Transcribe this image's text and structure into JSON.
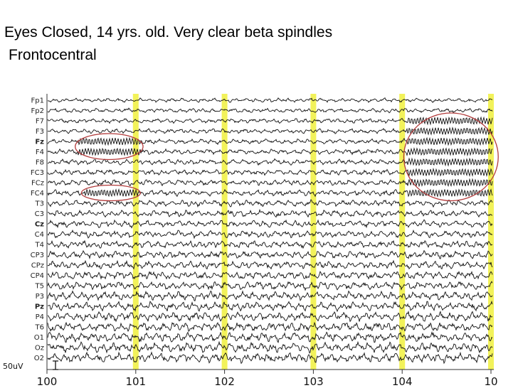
{
  "slide": {
    "title": "Eyes Closed, 14 yrs. old. Very clear beta spindles",
    "subtitle": "Frontocentral"
  },
  "chart_data": {
    "type": "line",
    "title": "Eyes Closed, 14 yrs. old. Very clear beta spindles",
    "subtitle": "Frontocentral",
    "channels": [
      "Fp1",
      "Fp2",
      "F7",
      "F3",
      "Fz",
      "F4",
      "F8",
      "FC3",
      "FCz",
      "FC4",
      "T3",
      "C3",
      "Cz",
      "C4",
      "T4",
      "CP3",
      "CPz",
      "CP4",
      "T5",
      "P3",
      "Pz",
      "P4",
      "T6",
      "O1",
      "Oz",
      "O2"
    ],
    "bold_channels": [
      "Fz",
      "Cz",
      "Pz"
    ],
    "x_ticks": [
      100,
      101,
      102,
      103,
      104,
      "10"
    ],
    "xlim": [
      100,
      105
    ],
    "second_markers": [
      101,
      102,
      103,
      104,
      105
    ],
    "scale_bar_label": "50uV",
    "spindle_regions": [
      {
        "x_range": [
          100.35,
          101.05
        ],
        "channels": [
          "Fz",
          "F4"
        ]
      },
      {
        "x_range": [
          100.42,
          101.02
        ],
        "channels": [
          "FC4"
        ]
      },
      {
        "x_range": [
          104.05,
          105.05
        ],
        "channels": [
          "F7",
          "F3",
          "Fz",
          "F4",
          "F8",
          "FC3",
          "FCz",
          "FC4"
        ]
      }
    ],
    "colors": {
      "marker": "#f2f25a",
      "circle": "#b23a3a",
      "trace": "#111111"
    }
  }
}
